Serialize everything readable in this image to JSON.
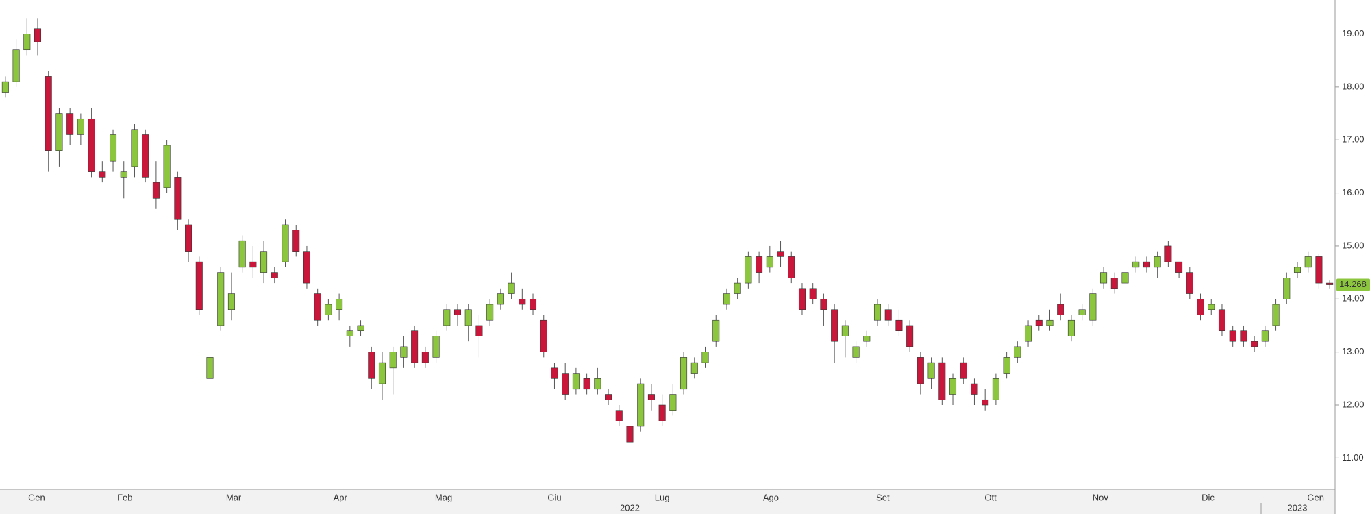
{
  "chart_data": {
    "type": "candlestick",
    "up_color": "#8cc63e",
    "down_color": "#c8173a",
    "open": [
      17.9,
      18.1,
      18.7,
      19.1,
      18.2,
      16.8,
      17.5,
      17.1,
      17.4,
      16.4,
      16.6,
      16.3,
      16.5,
      17.1,
      16.2,
      16.1,
      16.3,
      15.4,
      14.7,
      12.5,
      13.5,
      13.8,
      14.6,
      14.7,
      14.5,
      14.5,
      14.7,
      15.3,
      14.9,
      14.1,
      13.7,
      13.8,
      13.3,
      13.4,
      13.0,
      12.4,
      12.7,
      12.9,
      13.4,
      13.0,
      12.9,
      13.5,
      13.8,
      13.5,
      13.5,
      13.6,
      13.9,
      14.1,
      14.0,
      14.0,
      13.6,
      12.7,
      12.6,
      12.3,
      12.5,
      12.3,
      12.2,
      11.9,
      11.6,
      11.6,
      12.2,
      12.0,
      11.9,
      12.3,
      12.6,
      12.8,
      13.2,
      13.9,
      14.1,
      14.3,
      14.8,
      14.6,
      14.9,
      14.8,
      14.2,
      14.2,
      14.0,
      13.8,
      13.3,
      12.9,
      13.2,
      13.6,
      13.8,
      13.6,
      13.5,
      12.9,
      12.5,
      12.8,
      12.2,
      12.8,
      12.4,
      12.1,
      12.1,
      12.6,
      12.9,
      13.2,
      13.6,
      13.5,
      13.9,
      13.3,
      13.7,
      13.6,
      14.3,
      14.4,
      14.3,
      14.6,
      14.7,
      14.6,
      15.0,
      14.7,
      14.5,
      14.0,
      13.8,
      13.8,
      13.4,
      13.4,
      13.2,
      13.2,
      13.5,
      14.0,
      14.5,
      14.6,
      14.8,
      14.3
    ],
    "high": [
      18.2,
      18.9,
      19.3,
      19.3,
      18.3,
      17.6,
      17.6,
      17.5,
      17.6,
      16.6,
      17.2,
      16.6,
      17.3,
      17.2,
      16.6,
      17.0,
      16.4,
      15.5,
      14.8,
      13.6,
      14.6,
      14.5,
      15.2,
      15.0,
      15.1,
      14.6,
      15.5,
      15.4,
      15.0,
      14.2,
      14.0,
      14.1,
      13.5,
      13.6,
      13.1,
      13.0,
      13.1,
      13.3,
      13.5,
      13.1,
      13.4,
      13.9,
      13.9,
      13.9,
      13.7,
      14.0,
      14.2,
      14.5,
      14.2,
      14.1,
      13.7,
      12.8,
      12.8,
      12.7,
      12.6,
      12.7,
      12.3,
      12.0,
      11.7,
      12.5,
      12.4,
      12.2,
      12.4,
      13.0,
      12.9,
      13.1,
      13.7,
      14.2,
      14.4,
      14.9,
      14.9,
      15.0,
      15.1,
      14.9,
      14.3,
      14.3,
      14.1,
      13.9,
      13.6,
      13.2,
      13.4,
      14.0,
      13.9,
      13.8,
      13.6,
      13.0,
      12.9,
      12.9,
      12.6,
      12.9,
      12.5,
      12.3,
      12.6,
      13.0,
      13.2,
      13.6,
      13.7,
      13.8,
      14.1,
      13.7,
      13.9,
      14.2,
      14.6,
      14.5,
      14.6,
      14.8,
      14.8,
      14.9,
      15.1,
      14.7,
      14.6,
      14.1,
      14.0,
      13.9,
      13.5,
      13.5,
      13.3,
      13.5,
      14.0,
      14.5,
      14.7,
      14.9,
      14.85,
      14.35
    ],
    "low": [
      17.8,
      18.0,
      18.6,
      18.6,
      16.4,
      16.5,
      16.9,
      16.9,
      16.3,
      16.2,
      16.4,
      15.9,
      16.3,
      16.2,
      15.7,
      16.0,
      15.3,
      14.7,
      13.7,
      12.2,
      13.4,
      13.6,
      14.5,
      14.4,
      14.3,
      14.3,
      14.6,
      14.8,
      14.2,
      13.5,
      13.6,
      13.6,
      13.1,
      13.3,
      12.3,
      12.1,
      12.2,
      12.7,
      12.7,
      12.7,
      12.8,
      13.4,
      13.5,
      13.2,
      12.9,
      13.5,
      13.8,
      14.0,
      13.8,
      13.7,
      12.9,
      12.3,
      12.1,
      12.2,
      12.2,
      12.2,
      12.0,
      11.6,
      11.2,
      11.5,
      11.9,
      11.6,
      11.8,
      12.2,
      12.5,
      12.7,
      13.1,
      13.8,
      14.0,
      14.2,
      14.3,
      14.5,
      14.6,
      14.3,
      13.7,
      13.9,
      13.5,
      12.8,
      12.9,
      12.8,
      13.1,
      13.5,
      13.5,
      13.3,
      13.0,
      12.2,
      12.3,
      12.0,
      12.0,
      12.4,
      12.0,
      11.9,
      12.0,
      12.5,
      12.8,
      13.1,
      13.4,
      13.4,
      13.6,
      13.2,
      13.6,
      13.5,
      14.2,
      14.1,
      14.2,
      14.5,
      14.5,
      14.4,
      14.6,
      14.4,
      14.0,
      13.6,
      13.7,
      13.3,
      13.1,
      13.1,
      13.0,
      13.1,
      13.4,
      13.9,
      14.4,
      14.5,
      14.2,
      14.2
    ],
    "close": [
      18.1,
      18.7,
      19.0,
      18.85,
      16.8,
      17.5,
      17.1,
      17.4,
      16.4,
      16.3,
      17.1,
      16.4,
      17.2,
      16.3,
      15.9,
      16.9,
      15.5,
      14.9,
      13.8,
      12.9,
      14.5,
      14.1,
      15.1,
      14.6,
      14.9,
      14.4,
      15.4,
      14.9,
      14.3,
      13.6,
      13.9,
      14.0,
      13.4,
      13.5,
      12.5,
      12.8,
      13.0,
      13.1,
      12.8,
      12.8,
      13.3,
      13.8,
      13.7,
      13.8,
      13.3,
      13.9,
      14.1,
      14.3,
      13.9,
      13.8,
      13.0,
      12.5,
      12.2,
      12.6,
      12.3,
      12.5,
      12.1,
      11.7,
      11.3,
      12.4,
      12.1,
      11.7,
      12.2,
      12.9,
      12.8,
      13.0,
      13.6,
      14.1,
      14.3,
      14.8,
      14.5,
      14.8,
      14.8,
      14.4,
      13.8,
      14.0,
      13.8,
      13.2,
      13.5,
      13.1,
      13.3,
      13.9,
      13.6,
      13.4,
      13.1,
      12.4,
      12.8,
      12.1,
      12.5,
      12.5,
      12.2,
      12.0,
      12.5,
      12.9,
      13.1,
      13.5,
      13.5,
      13.6,
      13.7,
      13.6,
      13.8,
      14.1,
      14.5,
      14.2,
      14.5,
      14.7,
      14.6,
      14.8,
      14.7,
      14.5,
      14.1,
      13.7,
      13.9,
      13.4,
      13.2,
      13.2,
      13.1,
      13.4,
      13.9,
      14.4,
      14.6,
      14.8,
      14.3,
      14.268
    ],
    "last_value": 14.268,
    "xlim": [
      -0.5,
      123.5
    ],
    "xticks": [
      {
        "value": 2.9,
        "label": "Gen"
      },
      {
        "value": 11.1,
        "label": "Feb"
      },
      {
        "value": 21.2,
        "label": "Mar"
      },
      {
        "value": 31.1,
        "label": "Apr"
      },
      {
        "value": 40.7,
        "label": "Mag"
      },
      {
        "value": 51.0,
        "label": "Giu"
      },
      {
        "value": 61.0,
        "label": "Lug"
      },
      {
        "value": 71.1,
        "label": "Ago"
      },
      {
        "value": 81.5,
        "label": "Set"
      },
      {
        "value": 91.5,
        "label": "Ott"
      },
      {
        "value": 101.7,
        "label": "Nov"
      },
      {
        "value": 111.7,
        "label": "Dic"
      },
      {
        "value": 121.7,
        "label": "Gen"
      }
    ],
    "year_ticks": [
      {
        "value": 58.0,
        "label": "2022"
      },
      {
        "value": 120.0,
        "label": "2023"
      }
    ],
    "ylim": [
      10.41,
      19.64
    ],
    "yticks": [
      {
        "value": 11,
        "label": "11.00"
      },
      {
        "value": 12,
        "label": "12.00"
      },
      {
        "value": 13,
        "label": "13.00"
      },
      {
        "value": 14,
        "label": "14.00"
      },
      {
        "value": 15,
        "label": "15.00"
      },
      {
        "value": 16,
        "label": "16.00"
      },
      {
        "value": 17,
        "label": "17.00"
      },
      {
        "value": 18,
        "label": "18.00"
      },
      {
        "value": 19,
        "label": "19.00"
      }
    ]
  }
}
